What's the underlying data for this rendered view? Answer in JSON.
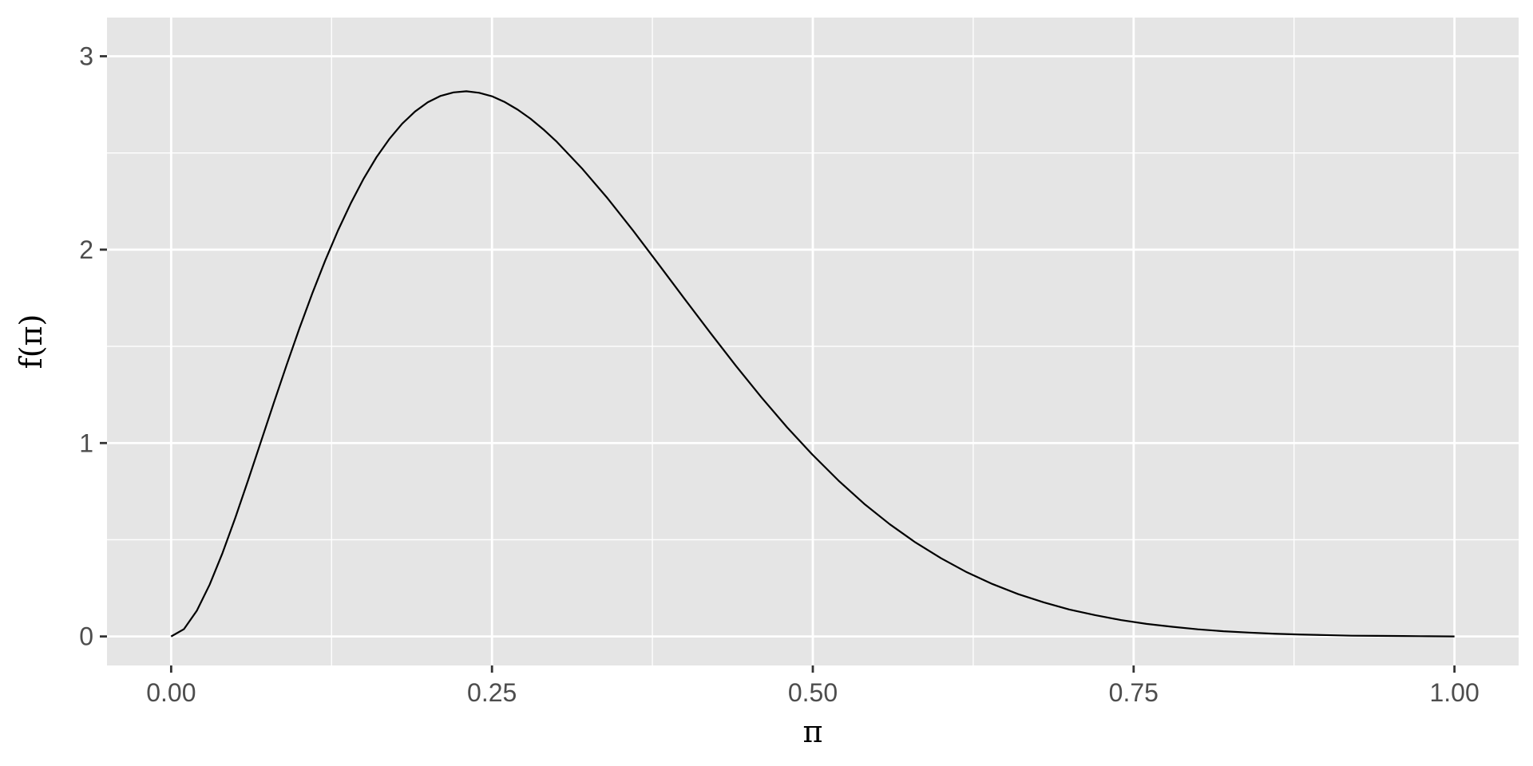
{
  "chart_data": {
    "type": "line",
    "xlabel": "π",
    "ylabel": "f(π)",
    "xlim": [
      -0.05,
      1.05
    ],
    "ylim": [
      -0.15,
      3.2
    ],
    "x_ticks": [
      0,
      0.25,
      0.5,
      0.75,
      1.0
    ],
    "x_tick_labels": [
      "0.00",
      "0.25",
      "0.50",
      "0.75",
      "1.00"
    ],
    "x_minor_ticks": [
      0.125,
      0.375,
      0.625,
      0.875
    ],
    "y_ticks": [
      0,
      1,
      2,
      3
    ],
    "y_tick_labels": [
      "0",
      "1",
      "2",
      "3"
    ],
    "y_minor_ticks": [
      0.5,
      1.5,
      2.5
    ],
    "grid": true,
    "legend": "none",
    "colors": {
      "panel": "#e5e5e5",
      "grid": "#ffffff",
      "line": "#000000",
      "tick": "#333333",
      "tick_text": "#4d4d4d"
    },
    "series": [
      {
        "x": [
          0,
          0.01,
          0.02,
          0.03,
          0.04,
          0.05,
          0.06,
          0.07,
          0.08,
          0.09,
          0.1,
          0.11,
          0.12,
          0.13,
          0.14,
          0.15,
          0.16,
          0.17,
          0.18,
          0.19,
          0.2,
          0.21,
          0.22,
          0.23,
          0.24,
          0.25,
          0.26,
          0.27,
          0.28,
          0.29,
          0.3,
          0.32,
          0.34,
          0.36,
          0.38,
          0.4,
          0.42,
          0.44,
          0.46,
          0.48,
          0.5,
          0.52,
          0.54,
          0.56,
          0.58,
          0.6,
          0.62,
          0.64,
          0.66,
          0.68,
          0.7,
          0.72,
          0.74,
          0.76,
          0.78,
          0.8,
          0.82,
          0.84,
          0.86,
          0.88,
          0.9,
          0.92,
          0.94,
          0.96,
          0.98,
          1.0
        ],
        "y": [
          0,
          0.038,
          0.133,
          0.268,
          0.431,
          0.614,
          0.808,
          1.008,
          1.208,
          1.404,
          1.594,
          1.774,
          1.943,
          2.099,
          2.24,
          2.367,
          2.478,
          2.572,
          2.651,
          2.714,
          2.762,
          2.795,
          2.813,
          2.819,
          2.811,
          2.793,
          2.763,
          2.724,
          2.677,
          2.622,
          2.561,
          2.421,
          2.266,
          2.098,
          1.923,
          1.746,
          1.571,
          1.4,
          1.236,
          1.081,
          0.938,
          0.806,
          0.686,
          0.58,
          0.486,
          0.404,
          0.332,
          0.271,
          0.219,
          0.176,
          0.139,
          0.11,
          0.085,
          0.065,
          0.05,
          0.037,
          0.027,
          0.02,
          0.014,
          0.01,
          0.007,
          0.004,
          0.003,
          0.002,
          0.001,
          0
        ]
      }
    ]
  }
}
